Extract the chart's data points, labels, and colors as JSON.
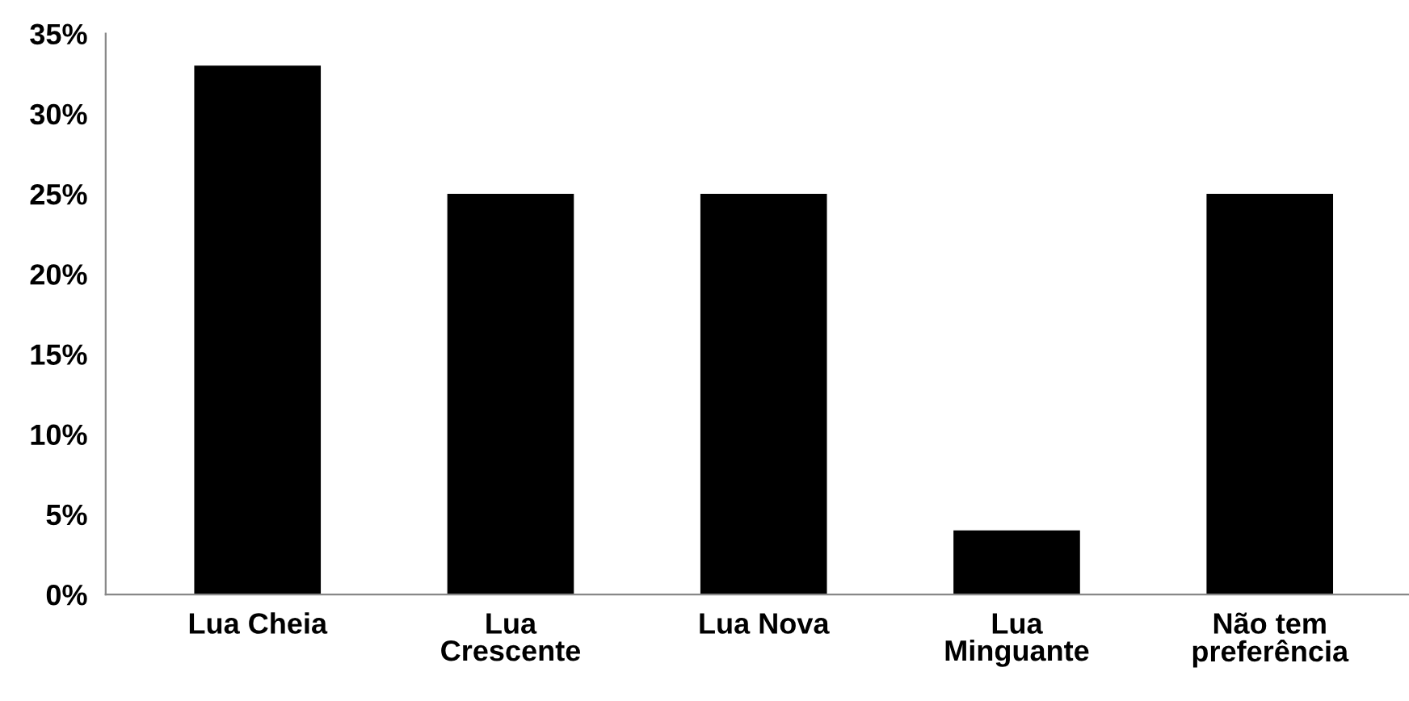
{
  "chart_data": {
    "type": "bar",
    "categories": [
      "Lua Cheia",
      "Lua\nCrescente",
      "Lua Nova",
      "Lua\nMinguante",
      "Não tem\npreferência"
    ],
    "values": [
      33,
      25,
      25,
      4,
      25
    ],
    "color": "#000000",
    "ylim": [
      0,
      35
    ],
    "yticks": [
      {
        "value": 0,
        "label": "0%"
      },
      {
        "value": 5,
        "label": "5%"
      },
      {
        "value": 10,
        "label": "10%"
      },
      {
        "value": 15,
        "label": "15%"
      },
      {
        "value": 20,
        "label": "20%"
      },
      {
        "value": 25,
        "label": "25%"
      },
      {
        "value": 30,
        "label": "30%"
      },
      {
        "value": 35,
        "label": "35%"
      }
    ],
    "grid": false,
    "legend": false
  }
}
